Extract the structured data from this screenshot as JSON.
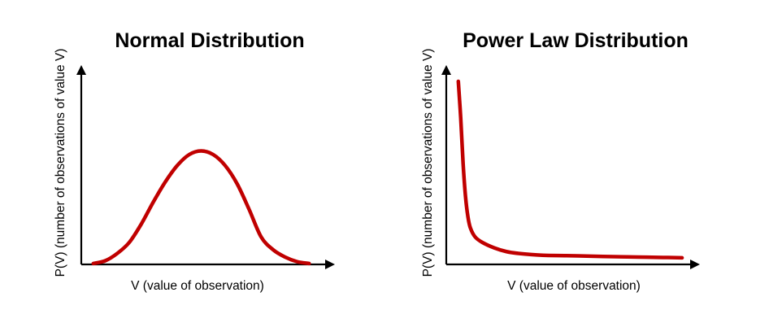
{
  "chart_data": [
    {
      "type": "line",
      "title": "Normal Distribution",
      "xlabel": "V (value of observation)",
      "ylabel": "P(V) (number of observations of value V)",
      "grid": false,
      "legend": "none",
      "series": [
        {
          "color": "#c00000",
          "x": [
            0.05,
            0.1,
            0.15,
            0.2,
            0.25,
            0.3,
            0.35,
            0.4,
            0.45,
            0.5,
            0.55,
            0.6,
            0.65,
            0.7,
            0.75,
            0.8,
            0.85,
            0.9,
            0.95
          ],
          "y": [
            0.005,
            0.02,
            0.06,
            0.12,
            0.22,
            0.34,
            0.45,
            0.54,
            0.6,
            0.62,
            0.6,
            0.54,
            0.44,
            0.3,
            0.15,
            0.08,
            0.04,
            0.015,
            0.005
          ]
        }
      ]
    },
    {
      "type": "line",
      "title": "Power Law Distribution",
      "xlabel": "V (value of observation)",
      "ylabel": "P(V) (number of observations of value V)",
      "grid": false,
      "legend": "none",
      "series": [
        {
          "color": "#c00000",
          "x": [
            0.05,
            0.06,
            0.07,
            0.08,
            0.09,
            0.1,
            0.12,
            0.15,
            0.2,
            0.25,
            0.3,
            0.4,
            0.5,
            0.6,
            0.7,
            0.8,
            0.9,
            0.98
          ],
          "y": [
            1.0,
            0.8,
            0.55,
            0.37,
            0.26,
            0.2,
            0.15,
            0.12,
            0.09,
            0.07,
            0.06,
            0.05,
            0.048,
            0.045,
            0.042,
            0.04,
            0.038,
            0.036
          ]
        }
      ]
    }
  ]
}
